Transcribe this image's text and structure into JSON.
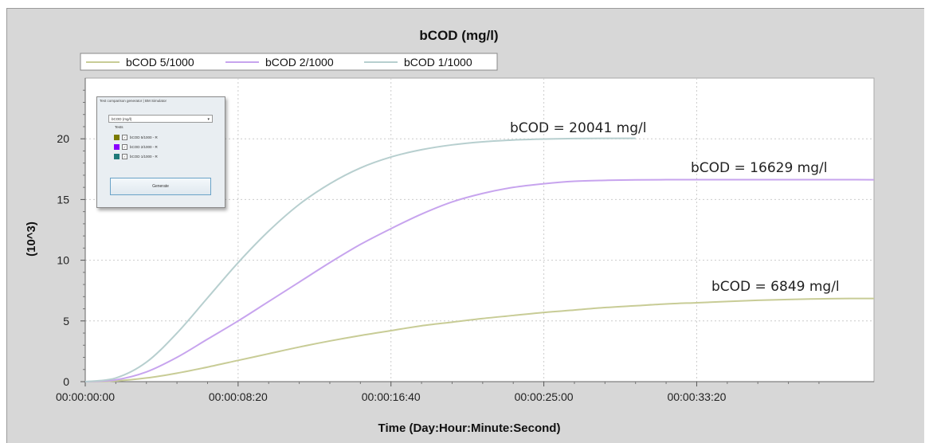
{
  "chart_data": {
    "type": "line",
    "title": "bCOD (mg/l)",
    "xlabel": "Time (Day:Hour:Minute:Second)",
    "ylabel": "(10^3)",
    "ylim": [
      0,
      25
    ],
    "xlim": [
      0,
      2580
    ],
    "x_tick_labels": [
      "00:00:00:00",
      "00:00:08:20",
      "00:00:16:40",
      "00:00:25:00",
      "00:00:33:20"
    ],
    "y_tick_labels": [
      "0",
      "5",
      "10",
      "15",
      "20"
    ],
    "grid": true,
    "legend_position": "top",
    "x": [
      0,
      100,
      200,
      300,
      400,
      500,
      600,
      700,
      800,
      900,
      1000,
      1100,
      1200,
      1300,
      1400,
      1500,
      1600,
      1700,
      1800,
      1900,
      2000,
      2100,
      2200,
      2300,
      2400,
      2500,
      2580
    ],
    "series": [
      {
        "name": "bCOD 5/1000",
        "color": "#c8cc96",
        "values": [
          0,
          0.06,
          0.3,
          0.7,
          1.2,
          1.75,
          2.3,
          2.85,
          3.35,
          3.8,
          4.2,
          4.6,
          4.9,
          5.2,
          5.45,
          5.7,
          5.9,
          6.1,
          6.25,
          6.4,
          6.5,
          6.6,
          6.7,
          6.77,
          6.82,
          6.85,
          6.849
        ]
      },
      {
        "name": "bCOD 2/1000",
        "color": "#c7a4ee",
        "values": [
          0,
          0.15,
          0.8,
          2.0,
          3.5,
          5.0,
          6.6,
          8.2,
          9.8,
          11.3,
          12.6,
          13.8,
          14.8,
          15.5,
          16.0,
          16.3,
          16.5,
          16.58,
          16.62,
          16.63,
          16.63,
          16.63,
          16.63,
          16.63,
          16.63,
          16.63,
          16.629
        ]
      },
      {
        "name": "bCOD 1/1000",
        "color": "#b7cfcf",
        "values": [
          0,
          0.3,
          1.6,
          4.0,
          6.9,
          9.8,
          12.4,
          14.6,
          16.3,
          17.6,
          18.5,
          19.1,
          19.5,
          19.75,
          19.9,
          19.98,
          20.02,
          20.04,
          20.041,
          null,
          null,
          null,
          null,
          null,
          null,
          null,
          null
        ]
      }
    ],
    "annotations": [
      "bCOD = 20041 mg/l",
      "bCOD = 16629 mg/l",
      "bCOD = 6849 mg/l"
    ]
  },
  "inset": {
    "title": "Test comparison generator | BM Simulator",
    "select_value": "bCOD (mg/l)",
    "tests_label": "Tests",
    "items": [
      {
        "label": "bCOD 5/1000 - R",
        "color": "#7a7a00"
      },
      {
        "label": "bCOD 2/1000 - R",
        "color": "#8a00ff"
      },
      {
        "label": "bCOD 1/1000 - R",
        "color": "#1f7a7a"
      }
    ],
    "button_label": "Generate"
  }
}
